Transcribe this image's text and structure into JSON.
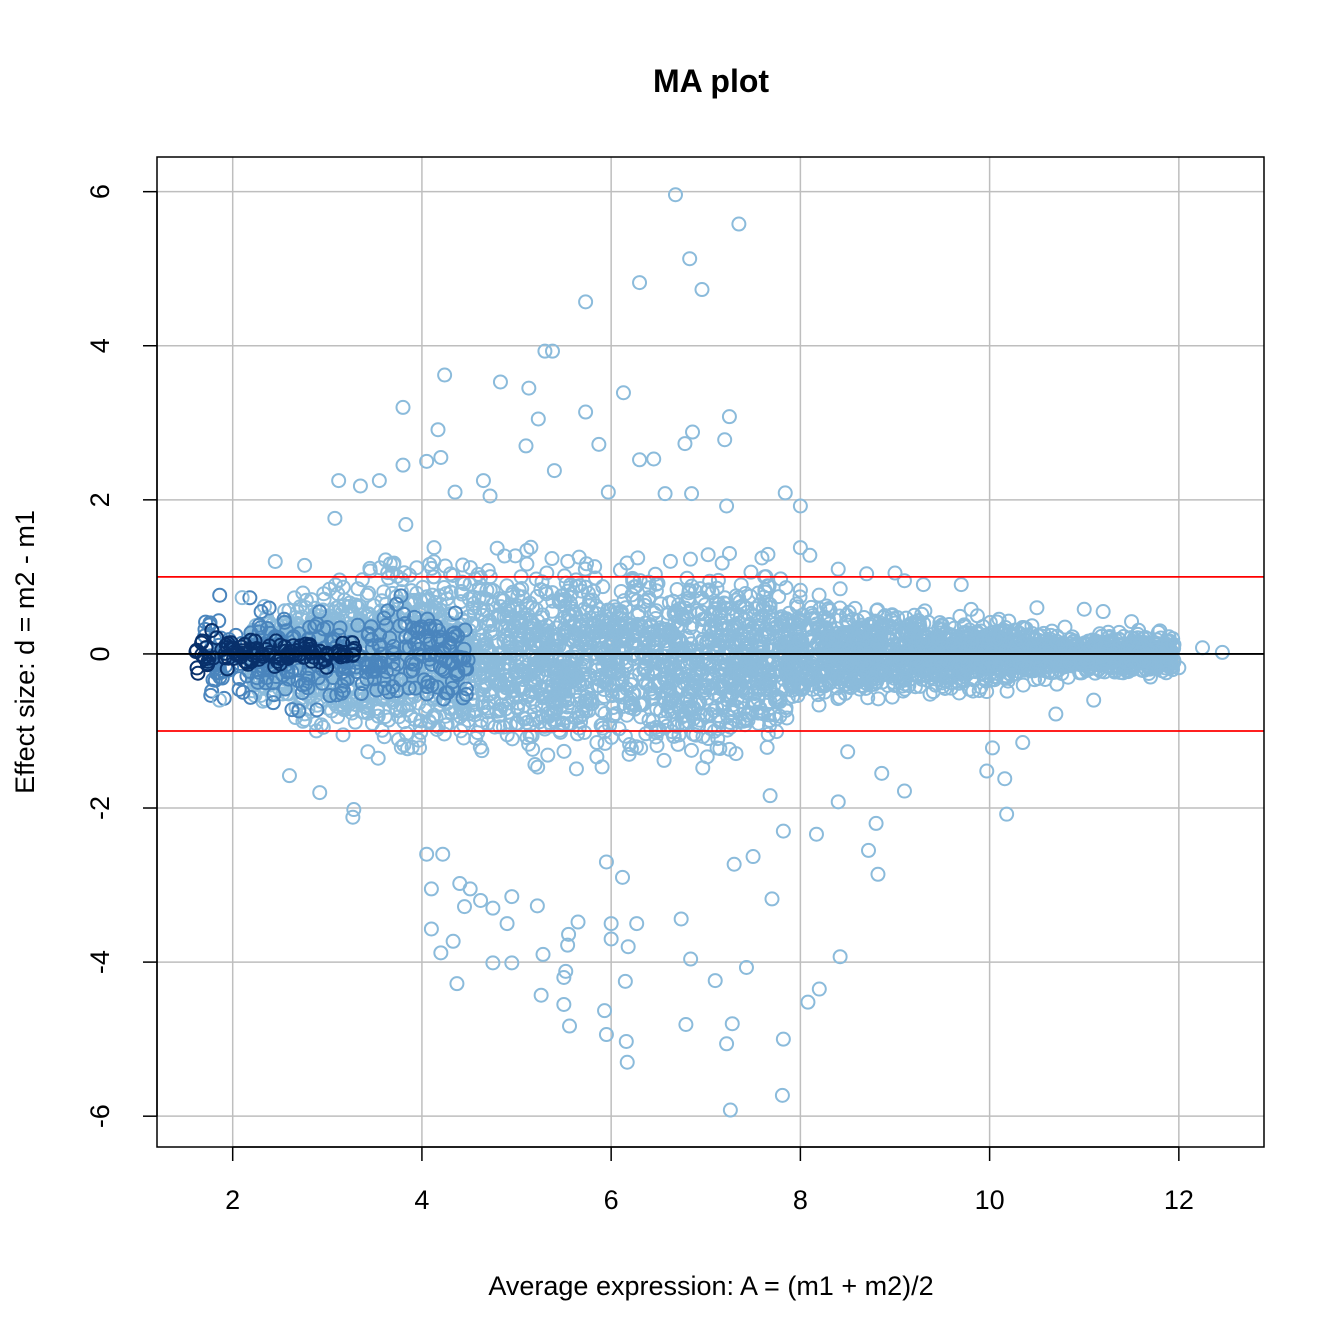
{
  "chart_data": {
    "type": "scatter",
    "title": "MA plot",
    "xlabel": "Average expression: A = (m1 + m2)/2",
    "ylabel": "Effect size: d = m2 - m1",
    "xlim": [
      1.2,
      12.9
    ],
    "ylim": [
      -6.4,
      6.45
    ],
    "xticks": [
      2,
      4,
      6,
      8,
      10,
      12
    ],
    "yticks": [
      -6,
      -4,
      -2,
      0,
      2,
      4,
      6
    ],
    "grid": true,
    "colors": {
      "points_light": "#8bbbdb",
      "points_mid": "#4a85bd",
      "points_dark": "#08306b",
      "threshold_lines": "#ff0000",
      "zero_line": "#000000",
      "grid": "#bebebe"
    },
    "reference_lines": [
      {
        "y": 1,
        "color": "#ff0000"
      },
      {
        "y": -1,
        "color": "#ff0000"
      },
      {
        "y": 0,
        "color": "#000000"
      }
    ],
    "outlier_points": [
      [
        6.68,
        5.96
      ],
      [
        7.35,
        5.58
      ],
      [
        6.83,
        5.13
      ],
      [
        6.96,
        4.73
      ],
      [
        6.3,
        4.82
      ],
      [
        5.73,
        4.57
      ],
      [
        5.3,
        3.93
      ],
      [
        5.38,
        3.93
      ],
      [
        4.24,
        3.62
      ],
      [
        4.83,
        3.53
      ],
      [
        5.13,
        3.45
      ],
      [
        6.13,
        3.39
      ],
      [
        3.8,
        3.2
      ],
      [
        5.73,
        3.14
      ],
      [
        7.25,
        3.08
      ],
      [
        5.23,
        3.05
      ],
      [
        4.17,
        2.91
      ],
      [
        6.86,
        2.88
      ],
      [
        6.78,
        2.73
      ],
      [
        7.2,
        2.78
      ],
      [
        5.87,
        2.72
      ],
      [
        5.1,
        2.7
      ],
      [
        6.3,
        2.52
      ],
      [
        6.45,
        2.53
      ],
      [
        4.2,
        2.55
      ],
      [
        3.8,
        2.45
      ],
      [
        4.05,
        2.5
      ],
      [
        5.4,
        2.38
      ],
      [
        4.65,
        2.25
      ],
      [
        3.12,
        2.25
      ],
      [
        3.55,
        2.25
      ],
      [
        4.35,
        2.1
      ],
      [
        3.35,
        2.18
      ],
      [
        4.72,
        2.05
      ],
      [
        5.97,
        2.1
      ],
      [
        6.57,
        2.08
      ],
      [
        6.85,
        2.08
      ],
      [
        7.84,
        2.09
      ],
      [
        8.0,
        1.92
      ],
      [
        7.22,
        1.92
      ],
      [
        8.0,
        1.38
      ],
      [
        8.1,
        1.28
      ],
      [
        8.4,
        1.1
      ],
      [
        8.7,
        1.04
      ],
      [
        9.0,
        1.05
      ],
      [
        9.1,
        0.95
      ],
      [
        9.3,
        0.9
      ],
      [
        9.7,
        0.9
      ],
      [
        10.1,
        0.45
      ],
      [
        10.5,
        0.6
      ],
      [
        11.0,
        0.58
      ],
      [
        11.2,
        0.55
      ],
      [
        11.5,
        0.42
      ],
      [
        11.8,
        0.3
      ],
      [
        12.25,
        0.08
      ],
      [
        12.46,
        0.02
      ],
      [
        12.0,
        -0.18
      ],
      [
        11.7,
        -0.3
      ],
      [
        11.1,
        -0.6
      ],
      [
        10.7,
        -0.78
      ],
      [
        10.35,
        -1.15
      ],
      [
        10.03,
        -1.22
      ],
      [
        9.97,
        -1.52
      ],
      [
        10.16,
        -1.62
      ],
      [
        10.18,
        -2.08
      ],
      [
        9.1,
        -1.78
      ],
      [
        8.86,
        -1.55
      ],
      [
        8.5,
        -1.27
      ],
      [
        8.4,
        -1.92
      ],
      [
        8.8,
        -2.2
      ],
      [
        8.72,
        -2.55
      ],
      [
        8.82,
        -2.86
      ],
      [
        8.17,
        -2.34
      ],
      [
        7.82,
        -2.3
      ],
      [
        7.68,
        -1.84
      ],
      [
        7.7,
        -3.18
      ],
      [
        7.5,
        -2.63
      ],
      [
        7.3,
        -2.73
      ],
      [
        7.43,
        -4.07
      ],
      [
        8.42,
        -3.93
      ],
      [
        8.2,
        -4.35
      ],
      [
        8.08,
        -4.52
      ],
      [
        7.1,
        -4.24
      ],
      [
        7.28,
        -4.8
      ],
      [
        7.22,
        -5.06
      ],
      [
        7.82,
        -5.0
      ],
      [
        7.81,
        -5.73
      ],
      [
        7.26,
        -5.92
      ],
      [
        6.84,
        -3.96
      ],
      [
        6.74,
        -3.44
      ],
      [
        6.79,
        -4.81
      ],
      [
        6.16,
        -5.03
      ],
      [
        6.17,
        -5.3
      ],
      [
        5.95,
        -4.94
      ],
      [
        5.93,
        -4.63
      ],
      [
        5.56,
        -4.83
      ],
      [
        5.5,
        -4.55
      ],
      [
        5.26,
        -4.43
      ],
      [
        5.52,
        -4.12
      ],
      [
        5.5,
        -4.2
      ],
      [
        6.15,
        -4.25
      ],
      [
        6.18,
        -3.8
      ],
      [
        6.27,
        -3.5
      ],
      [
        6.0,
        -3.5
      ],
      [
        6.0,
        -3.7
      ],
      [
        5.54,
        -3.78
      ],
      [
        5.65,
        -3.48
      ],
      [
        5.55,
        -3.64
      ],
      [
        5.28,
        -3.9
      ],
      [
        4.75,
        -4.01
      ],
      [
        4.95,
        -4.01
      ],
      [
        4.37,
        -4.28
      ],
      [
        4.2,
        -3.88
      ],
      [
        4.33,
        -3.73
      ],
      [
        4.1,
        -3.57
      ],
      [
        4.9,
        -3.5
      ],
      [
        4.45,
        -3.28
      ],
      [
        4.75,
        -3.3
      ],
      [
        5.22,
        -3.27
      ],
      [
        4.51,
        -3.05
      ],
      [
        4.62,
        -3.2
      ],
      [
        4.95,
        -3.15
      ],
      [
        4.4,
        -2.98
      ],
      [
        5.95,
        -2.7
      ],
      [
        6.12,
        -2.9
      ],
      [
        4.1,
        -3.05
      ],
      [
        4.05,
        -2.6
      ],
      [
        4.22,
        -2.6
      ],
      [
        3.27,
        -2.12
      ],
      [
        3.28,
        -2.02
      ],
      [
        2.92,
        -1.8
      ],
      [
        2.6,
        -1.58
      ],
      [
        1.86,
        -0.6
      ],
      [
        2.1,
        0.73
      ],
      [
        3.08,
        1.76
      ],
      [
        3.83,
        1.68
      ],
      [
        2.45,
        1.2
      ],
      [
        2.76,
        1.15
      ]
    ],
    "density_bands": [
      {
        "x_from": 1.6,
        "x_to": 1.95,
        "y_min": -0.35,
        "y_max": 0.4,
        "level": "dark"
      },
      {
        "x_from": 1.95,
        "x_to": 3.3,
        "y_min": -0.22,
        "y_max": 0.22,
        "level": "dark"
      },
      {
        "x_from": 1.7,
        "x_to": 4.5,
        "y_min": -0.9,
        "y_max": 0.85,
        "level": "mid"
      },
      {
        "x_from": 2.2,
        "x_to": 7.8,
        "y_min": -1.7,
        "y_max": 1.6,
        "level": "light"
      },
      {
        "x_from": 7.8,
        "x_to": 11.95,
        "y_min": -1.0,
        "y_max": 1.0,
        "level": "light"
      }
    ]
  }
}
